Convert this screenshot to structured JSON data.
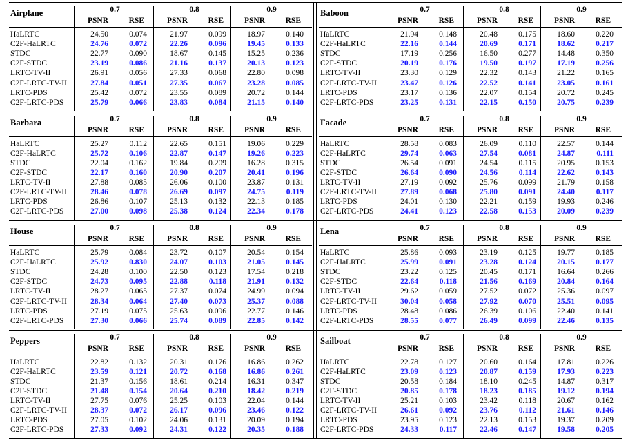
{
  "methods": [
    "HaLRTC",
    "C2F-HaLRTC",
    "STDC",
    "C2F-STDC",
    "LRTC-TV-II",
    "C2F-LRTC-TV-II",
    "LRTC-PDS",
    "C2F-LRTC-PDS"
  ],
  "rates": [
    "0.7",
    "0.8",
    "0.9"
  ],
  "metrics": [
    "PSNR",
    "RSE"
  ],
  "highlight_color": "#1a1aff",
  "images": [
    {
      "name": "Airplane",
      "rows": [
        [
          "24.50",
          "0.074",
          "21.97",
          "0.099",
          "18.97",
          "0.140"
        ],
        [
          "24.76",
          "0.072",
          "22.26",
          "0.096",
          "19.45",
          "0.133"
        ],
        [
          "22.77",
          "0.090",
          "18.67",
          "0.145",
          "15.25",
          "0.236"
        ],
        [
          "23.19",
          "0.086",
          "21.16",
          "0.137",
          "20.13",
          "0.123"
        ],
        [
          "26.91",
          "0.056",
          "27.33",
          "0.068",
          "22.80",
          "0.098"
        ],
        [
          "27.84",
          "0.051",
          "27.35",
          "0.067",
          "23.28",
          "0.085"
        ],
        [
          "25.42",
          "0.072",
          "23.55",
          "0.089",
          "20.72",
          "0.144"
        ],
        [
          "25.79",
          "0.066",
          "23.83",
          "0.084",
          "21.15",
          "0.140"
        ]
      ]
    },
    {
      "name": "Baboon",
      "rows": [
        [
          "21.94",
          "0.148",
          "20.48",
          "0.175",
          "18.60",
          "0.220"
        ],
        [
          "22.16",
          "0.144",
          "20.69",
          "0.171",
          "18.62",
          "0.217"
        ],
        [
          "17.19",
          "0.256",
          "16.50",
          "0.277",
          "14.48",
          "0.350"
        ],
        [
          "20.19",
          "0.176",
          "19.50",
          "0.197",
          "17.19",
          "0.256"
        ],
        [
          "23.30",
          "0.129",
          "22.32",
          "0.143",
          "21.22",
          "0.165"
        ],
        [
          "23.47",
          "0.126",
          "22.52",
          "0.141",
          "23.05",
          "0.161"
        ],
        [
          "23.17",
          "0.136",
          "22.07",
          "0.154",
          "20.72",
          "0.245"
        ],
        [
          "23.25",
          "0.131",
          "22.15",
          "0.150",
          "20.75",
          "0.239"
        ]
      ]
    },
    {
      "name": "Barbara",
      "rows": [
        [
          "25.27",
          "0.112",
          "22.65",
          "0.151",
          "19.06",
          "0.229"
        ],
        [
          "25.72",
          "0.106",
          "22.87",
          "0.147",
          "19.26",
          "0.223"
        ],
        [
          "22.04",
          "0.162",
          "19.84",
          "0.209",
          "16.28",
          "0.315"
        ],
        [
          "22.17",
          "0.160",
          "20.90",
          "0.207",
          "20.41",
          "0.196"
        ],
        [
          "27.88",
          "0.085",
          "26.06",
          "0.100",
          "23.87",
          "0.131"
        ],
        [
          "28.46",
          "0.078",
          "26.69",
          "0.097",
          "24.75",
          "0.119"
        ],
        [
          "26.86",
          "0.107",
          "25.13",
          "0.132",
          "22.13",
          "0.185"
        ],
        [
          "27.00",
          "0.098",
          "25.38",
          "0.124",
          "22.34",
          "0.178"
        ]
      ]
    },
    {
      "name": "Facade",
      "rows": [
        [
          "28.58",
          "0.083",
          "26.09",
          "0.110",
          "22.57",
          "0.144"
        ],
        [
          "29.74",
          "0.063",
          "27.54",
          "0.081",
          "24.87",
          "0.111"
        ],
        [
          "26.54",
          "0.091",
          "24.54",
          "0.115",
          "20.95",
          "0.153"
        ],
        [
          "26.64",
          "0.090",
          "24.56",
          "0.114",
          "22.62",
          "0.143"
        ],
        [
          "27.19",
          "0.092",
          "25.76",
          "0.099",
          "21.79",
          "0.158"
        ],
        [
          "27.89",
          "0.068",
          "25.80",
          "0.091",
          "24.40",
          "0.117"
        ],
        [
          "24.01",
          "0.130",
          "22.21",
          "0.159",
          "19.93",
          "0.246"
        ],
        [
          "24.41",
          "0.123",
          "22.58",
          "0.153",
          "20.09",
          "0.239"
        ]
      ]
    },
    {
      "name": "House",
      "rows": [
        [
          "25.79",
          "0.084",
          "23.72",
          "0.107",
          "20.54",
          "0.154"
        ],
        [
          "25.92",
          "0.830",
          "24.07",
          "0.103",
          "21.05",
          "0.145"
        ],
        [
          "24.28",
          "0.100",
          "22.50",
          "0.123",
          "17.54",
          "0.218"
        ],
        [
          "24.73",
          "0.095",
          "22.88",
          "0.118",
          "21.91",
          "0.132"
        ],
        [
          "28.27",
          "0.065",
          "27.37",
          "0.074",
          "24.99",
          "0.094"
        ],
        [
          "28.34",
          "0.064",
          "27.40",
          "0.073",
          "25.37",
          "0.088"
        ],
        [
          "27.19",
          "0.075",
          "25.63",
          "0.096",
          "22.77",
          "0.146"
        ],
        [
          "27.30",
          "0.066",
          "25.74",
          "0.089",
          "22.85",
          "0.142"
        ]
      ]
    },
    {
      "name": "Lena",
      "rows": [
        [
          "25.86",
          "0.093",
          "23.19",
          "0.125",
          "19.77",
          "0.185"
        ],
        [
          "25.99",
          "0.091",
          "23.28",
          "0.124",
          "20.15",
          "0.177"
        ],
        [
          "23.22",
          "0.125",
          "20.45",
          "0.171",
          "16.64",
          "0.266"
        ],
        [
          "22.64",
          "0.118",
          "21.56",
          "0.169",
          "20.84",
          "0.164"
        ],
        [
          "29.62",
          "0.059",
          "27.52",
          "0.072",
          "25.36",
          "0.097"
        ],
        [
          "30.04",
          "0.058",
          "27.92",
          "0.070",
          "25.51",
          "0.095"
        ],
        [
          "28.48",
          "0.086",
          "26.39",
          "0.106",
          "22.40",
          "0.141"
        ],
        [
          "28.55",
          "0.077",
          "26.49",
          "0.099",
          "22.46",
          "0.135"
        ]
      ]
    },
    {
      "name": "Peppers",
      "rows": [
        [
          "22.82",
          "0.132",
          "20.31",
          "0.176",
          "16.86",
          "0.262"
        ],
        [
          "23.59",
          "0.121",
          "20.72",
          "0.168",
          "16.86",
          "0.261"
        ],
        [
          "21.37",
          "0.156",
          "18.61",
          "0.214",
          "16.31",
          "0.347"
        ],
        [
          "21.48",
          "0.154",
          "20.64",
          "0.210",
          "18.42",
          "0.219"
        ],
        [
          "27.75",
          "0.076",
          "25.25",
          "0.103",
          "22.04",
          "0.144"
        ],
        [
          "28.37",
          "0.072",
          "26.17",
          "0.096",
          "23.46",
          "0.122"
        ],
        [
          "27.05",
          "0.102",
          "24.06",
          "0.131",
          "20.09",
          "0.194"
        ],
        [
          "27.33",
          "0.092",
          "24.31",
          "0.122",
          "20.35",
          "0.188"
        ]
      ]
    },
    {
      "name": "Sailboat",
      "rows": [
        [
          "22.78",
          "0.127",
          "20.60",
          "0.164",
          "17.81",
          "0.226"
        ],
        [
          "23.09",
          "0.123",
          "20.87",
          "0.159",
          "17.93",
          "0.223"
        ],
        [
          "20.58",
          "0.184",
          "18.10",
          "0.245",
          "14.87",
          "0.317"
        ],
        [
          "20.85",
          "0.178",
          "18.23",
          "0.185",
          "19.12",
          "0.194"
        ],
        [
          "25.21",
          "0.103",
          "23.42",
          "0.118",
          "20.67",
          "0.162"
        ],
        [
          "26.61",
          "0.092",
          "23.76",
          "0.112",
          "21.61",
          "0.146"
        ],
        [
          "23.95",
          "0.123",
          "22.13",
          "0.153",
          "19.37",
          "0.209"
        ],
        [
          "24.33",
          "0.117",
          "22.46",
          "0.147",
          "19.58",
          "0.205"
        ]
      ]
    }
  ]
}
